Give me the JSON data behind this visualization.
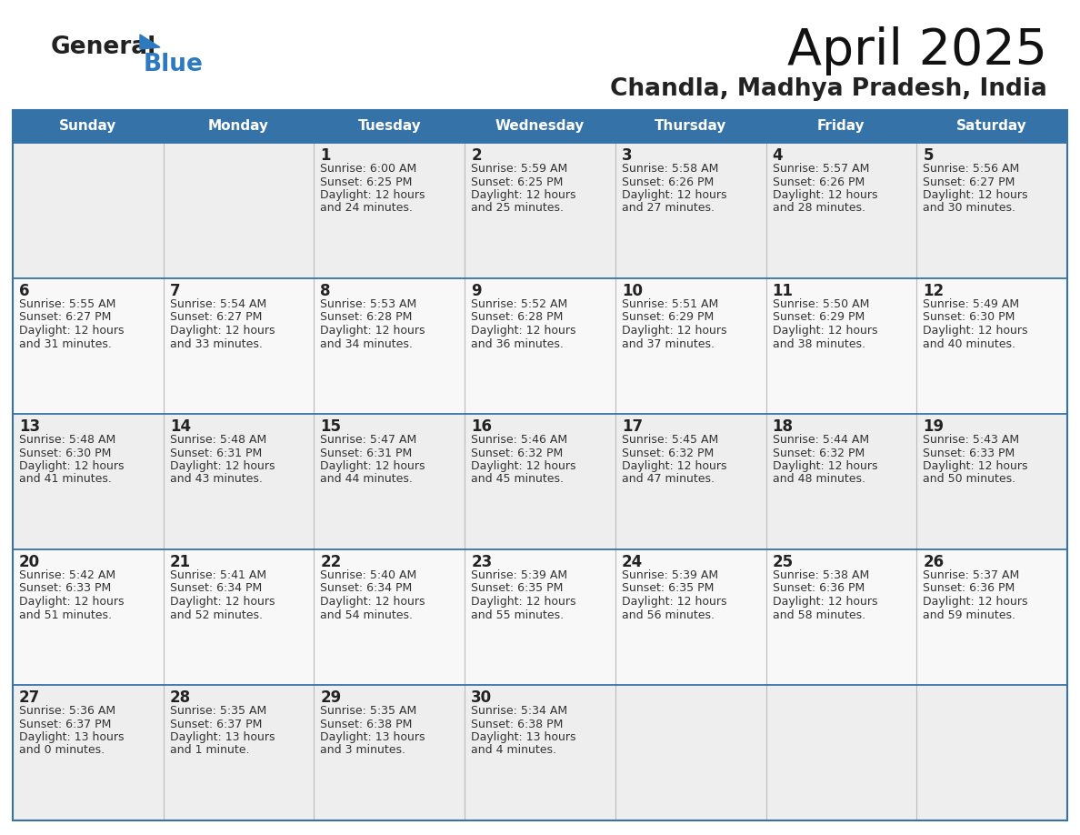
{
  "title": "April 2025",
  "subtitle": "Chandla, Madhya Pradesh, India",
  "header_bg": "#3572a8",
  "header_text_color": "#ffffff",
  "cell_bg_odd": "#eeeeee",
  "cell_bg_even": "#f8f8f8",
  "day_number_color": "#222222",
  "cell_text_color": "#333333",
  "border_color": "#3572a8",
  "grid_color": "#bbbbbb",
  "days_of_week": [
    "Sunday",
    "Monday",
    "Tuesday",
    "Wednesday",
    "Thursday",
    "Friday",
    "Saturday"
  ],
  "logo_general_color": "#222222",
  "logo_blue_color": "#2e7abf",
  "logo_triangle_color": "#2e7abf",
  "calendar_data": [
    [
      {
        "day": "",
        "sunrise": "",
        "sunset": "",
        "daylight": ""
      },
      {
        "day": "",
        "sunrise": "",
        "sunset": "",
        "daylight": ""
      },
      {
        "day": "1",
        "sunrise": "6:00 AM",
        "sunset": "6:25 PM",
        "daylight": "12 hours\nand 24 minutes."
      },
      {
        "day": "2",
        "sunrise": "5:59 AM",
        "sunset": "6:25 PM",
        "daylight": "12 hours\nand 25 minutes."
      },
      {
        "day": "3",
        "sunrise": "5:58 AM",
        "sunset": "6:26 PM",
        "daylight": "12 hours\nand 27 minutes."
      },
      {
        "day": "4",
        "sunrise": "5:57 AM",
        "sunset": "6:26 PM",
        "daylight": "12 hours\nand 28 minutes."
      },
      {
        "day": "5",
        "sunrise": "5:56 AM",
        "sunset": "6:27 PM",
        "daylight": "12 hours\nand 30 minutes."
      }
    ],
    [
      {
        "day": "6",
        "sunrise": "5:55 AM",
        "sunset": "6:27 PM",
        "daylight": "12 hours\nand 31 minutes."
      },
      {
        "day": "7",
        "sunrise": "5:54 AM",
        "sunset": "6:27 PM",
        "daylight": "12 hours\nand 33 minutes."
      },
      {
        "day": "8",
        "sunrise": "5:53 AM",
        "sunset": "6:28 PM",
        "daylight": "12 hours\nand 34 minutes."
      },
      {
        "day": "9",
        "sunrise": "5:52 AM",
        "sunset": "6:28 PM",
        "daylight": "12 hours\nand 36 minutes."
      },
      {
        "day": "10",
        "sunrise": "5:51 AM",
        "sunset": "6:29 PM",
        "daylight": "12 hours\nand 37 minutes."
      },
      {
        "day": "11",
        "sunrise": "5:50 AM",
        "sunset": "6:29 PM",
        "daylight": "12 hours\nand 38 minutes."
      },
      {
        "day": "12",
        "sunrise": "5:49 AM",
        "sunset": "6:30 PM",
        "daylight": "12 hours\nand 40 minutes."
      }
    ],
    [
      {
        "day": "13",
        "sunrise": "5:48 AM",
        "sunset": "6:30 PM",
        "daylight": "12 hours\nand 41 minutes."
      },
      {
        "day": "14",
        "sunrise": "5:48 AM",
        "sunset": "6:31 PM",
        "daylight": "12 hours\nand 43 minutes."
      },
      {
        "day": "15",
        "sunrise": "5:47 AM",
        "sunset": "6:31 PM",
        "daylight": "12 hours\nand 44 minutes."
      },
      {
        "day": "16",
        "sunrise": "5:46 AM",
        "sunset": "6:32 PM",
        "daylight": "12 hours\nand 45 minutes."
      },
      {
        "day": "17",
        "sunrise": "5:45 AM",
        "sunset": "6:32 PM",
        "daylight": "12 hours\nand 47 minutes."
      },
      {
        "day": "18",
        "sunrise": "5:44 AM",
        "sunset": "6:32 PM",
        "daylight": "12 hours\nand 48 minutes."
      },
      {
        "day": "19",
        "sunrise": "5:43 AM",
        "sunset": "6:33 PM",
        "daylight": "12 hours\nand 50 minutes."
      }
    ],
    [
      {
        "day": "20",
        "sunrise": "5:42 AM",
        "sunset": "6:33 PM",
        "daylight": "12 hours\nand 51 minutes."
      },
      {
        "day": "21",
        "sunrise": "5:41 AM",
        "sunset": "6:34 PM",
        "daylight": "12 hours\nand 52 minutes."
      },
      {
        "day": "22",
        "sunrise": "5:40 AM",
        "sunset": "6:34 PM",
        "daylight": "12 hours\nand 54 minutes."
      },
      {
        "day": "23",
        "sunrise": "5:39 AM",
        "sunset": "6:35 PM",
        "daylight": "12 hours\nand 55 minutes."
      },
      {
        "day": "24",
        "sunrise": "5:39 AM",
        "sunset": "6:35 PM",
        "daylight": "12 hours\nand 56 minutes."
      },
      {
        "day": "25",
        "sunrise": "5:38 AM",
        "sunset": "6:36 PM",
        "daylight": "12 hours\nand 58 minutes."
      },
      {
        "day": "26",
        "sunrise": "5:37 AM",
        "sunset": "6:36 PM",
        "daylight": "12 hours\nand 59 minutes."
      }
    ],
    [
      {
        "day": "27",
        "sunrise": "5:36 AM",
        "sunset": "6:37 PM",
        "daylight": "13 hours\nand 0 minutes."
      },
      {
        "day": "28",
        "sunrise": "5:35 AM",
        "sunset": "6:37 PM",
        "daylight": "13 hours\nand 1 minute."
      },
      {
        "day": "29",
        "sunrise": "5:35 AM",
        "sunset": "6:38 PM",
        "daylight": "13 hours\nand 3 minutes."
      },
      {
        "day": "30",
        "sunrise": "5:34 AM",
        "sunset": "6:38 PM",
        "daylight": "13 hours\nand 4 minutes."
      },
      {
        "day": "",
        "sunrise": "",
        "sunset": "",
        "daylight": ""
      },
      {
        "day": "",
        "sunrise": "",
        "sunset": "",
        "daylight": ""
      },
      {
        "day": "",
        "sunrise": "",
        "sunset": "",
        "daylight": ""
      }
    ]
  ]
}
